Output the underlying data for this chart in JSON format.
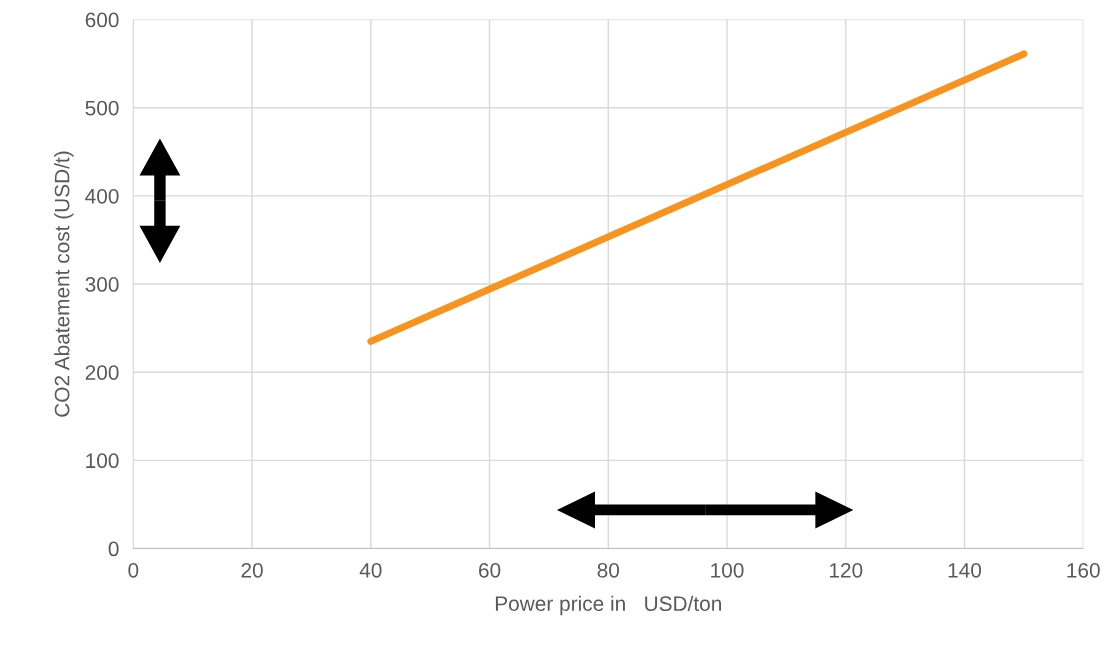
{
  "chart_data": {
    "type": "line",
    "xlabel": "Power price in   USD/ton",
    "ylabel": "CO2 Abatement cost (USD/t)",
    "x": [
      40,
      150
    ],
    "series": [
      {
        "color": "#f7931e",
        "values": [
          235,
          561
        ]
      }
    ],
    "xlim": [
      0,
      160
    ],
    "xticks": [
      0,
      20,
      40,
      60,
      80,
      100,
      120,
      140,
      160
    ],
    "ylim": [
      0,
      600
    ],
    "yticks": [
      0,
      100,
      200,
      300,
      400,
      500,
      600
    ],
    "grid": true,
    "line_style": "solid",
    "marker": "none"
  }
}
